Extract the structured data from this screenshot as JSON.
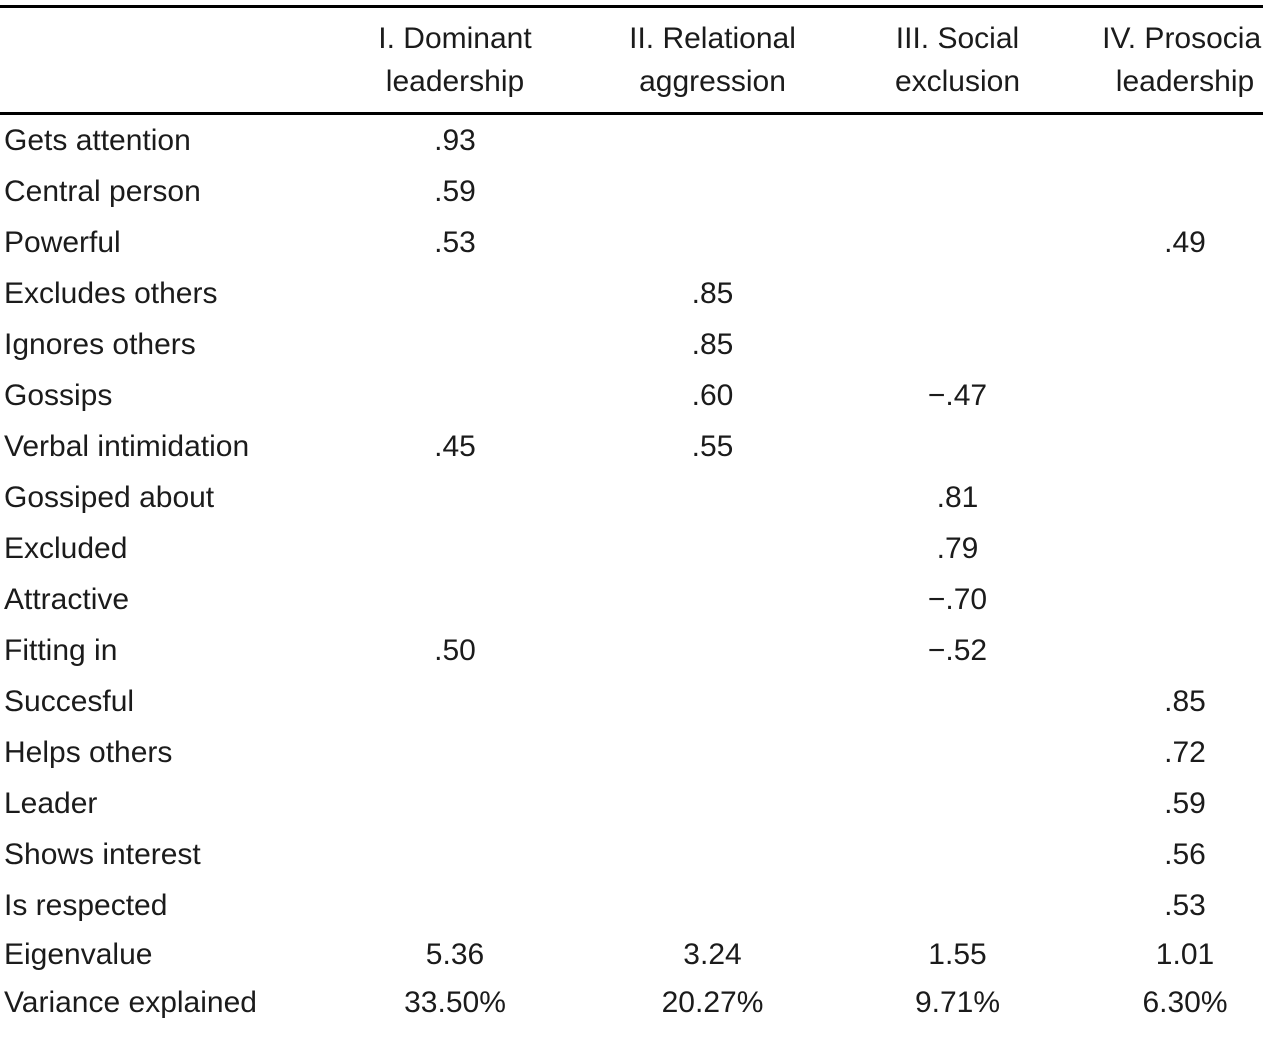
{
  "table": {
    "description": "Factor loading table with four factors",
    "col_headers": [
      {
        "line1": "I. Dominant",
        "line2": "leadership"
      },
      {
        "line1": "II. Relational",
        "line2": "aggression"
      },
      {
        "line1": "III. Social",
        "line2": "exclusion"
      },
      {
        "line1": "IV. Prosocial",
        "line2": "leadership"
      }
    ],
    "rows": [
      {
        "label": "Gets attention",
        "values": [
          ".93",
          "",
          "",
          ""
        ]
      },
      {
        "label": "Central person",
        "values": [
          ".59",
          "",
          "",
          ""
        ]
      },
      {
        "label": "Powerful",
        "values": [
          ".53",
          "",
          "",
          ".49"
        ]
      },
      {
        "label": "Excludes others",
        "values": [
          "",
          ".85",
          "",
          ""
        ]
      },
      {
        "label": "Ignores others",
        "values": [
          "",
          ".85",
          "",
          ""
        ]
      },
      {
        "label": "Gossips",
        "values": [
          "",
          ".60",
          "−.47",
          ""
        ]
      },
      {
        "label": "Verbal intimidation",
        "values": [
          ".45",
          ".55",
          "",
          ""
        ]
      },
      {
        "label": "Gossiped about",
        "values": [
          "",
          "",
          ".81",
          ""
        ]
      },
      {
        "label": "Excluded",
        "values": [
          "",
          "",
          ".79",
          ""
        ]
      },
      {
        "label": "Attractive",
        "values": [
          "",
          "",
          "−.70",
          ""
        ]
      },
      {
        "label": "Fitting in",
        "values": [
          ".50",
          "",
          "−.52",
          ""
        ]
      },
      {
        "label": "Succesful",
        "values": [
          "",
          "",
          "",
          ".85"
        ]
      },
      {
        "label": "Helps others",
        "values": [
          "",
          "",
          "",
          ".72"
        ]
      },
      {
        "label": "Leader",
        "values": [
          "",
          "",
          "",
          ".59"
        ]
      },
      {
        "label": "Shows interest",
        "values": [
          "",
          "",
          "",
          ".56"
        ]
      },
      {
        "label": "Is respected",
        "values": [
          "",
          "",
          "",
          ".53"
        ]
      },
      {
        "label": "Eigenvalue",
        "values": [
          "5.36",
          "3.24",
          "1.55",
          "1.01"
        ],
        "summary": true
      },
      {
        "label": "Variance explained",
        "values": [
          "33.50%",
          "20.27%",
          "9.71%",
          "6.30%"
        ],
        "summary": true
      }
    ]
  }
}
